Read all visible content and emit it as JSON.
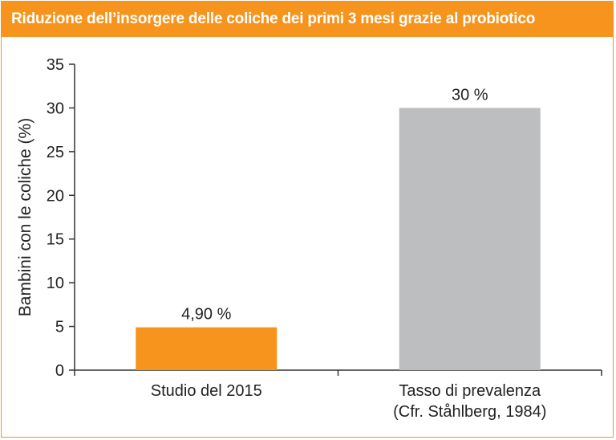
{
  "chart_data": {
    "type": "bar",
    "title": "Riduzione dell’insorgere delle coliche dei primi 3 mesi grazie al probiotico",
    "ylabel": "Bambini con le coliche (%)",
    "xlabel": "",
    "ylim": [
      0,
      35
    ],
    "yticks": [
      0,
      5,
      10,
      15,
      20,
      25,
      30,
      35
    ],
    "grid": false,
    "categories": [
      [
        "Studio del 2015"
      ],
      [
        "Tasso di prevalenza",
        "(Cfr. Ståhlberg, 1984)"
      ]
    ],
    "values": [
      4.9,
      30
    ],
    "data_labels": [
      "4,90 %",
      "30 %"
    ],
    "colors": [
      "#f7941d",
      "#bcbec0"
    ]
  },
  "colors": {
    "accent": "#f7941d",
    "frame": "#f7941d",
    "axis": "#333333"
  }
}
